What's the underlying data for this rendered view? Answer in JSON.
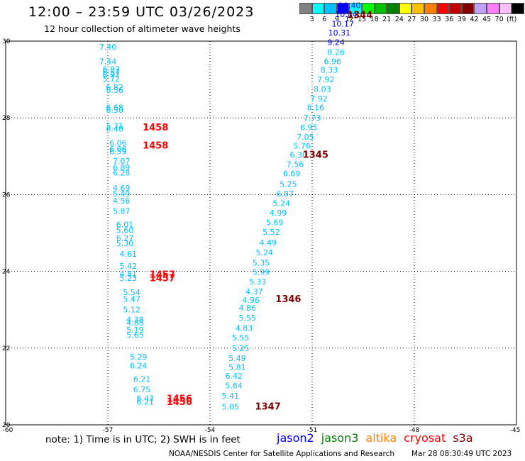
{
  "header": {
    "title": "12:00 – 23:59 UTC 03/26/2023",
    "subtitle": "12 hour collection of altimeter wave heights"
  },
  "legend": {
    "colors": [
      "#808080",
      "#00ffff",
      "#00c0ff",
      "#0000ff",
      "#00ffff",
      "#00ff00",
      "#00c000",
      "#008000",
      "#ffff00",
      "#ffc000",
      "#ff8000",
      "#ff0000",
      "#c00000",
      "#800000",
      "#c0a0ff",
      "#ff80ff",
      "#ffc0ff",
      "#000000"
    ],
    "labels": [
      "3",
      "6",
      "9",
      "12",
      "15",
      "18",
      "21",
      "24",
      "27",
      "30",
      "33",
      "36",
      "39",
      "42",
      "45",
      "70",
      "(ft)"
    ]
  },
  "chart_data": {
    "type": "scatter",
    "xlim": [
      -60,
      -45
    ],
    "ylim": [
      20,
      30
    ],
    "x_ticks": [
      "-60",
      "-57",
      "-54",
      "-51",
      "-48",
      "-45"
    ],
    "y_ticks": [
      "30",
      "28",
      "26",
      "24",
      "22",
      "20"
    ],
    "grid": true,
    "tracks": [
      {
        "color": "#00c0ff",
        "points": [
          [
            -57.0,
            29.78,
            "7.40"
          ],
          [
            -57.0,
            29.4,
            "7.44"
          ],
          [
            -56.9,
            29.2,
            "6.97"
          ],
          [
            -56.9,
            29.12,
            "6.57"
          ],
          [
            -56.9,
            29.05,
            "6.97"
          ],
          [
            -56.9,
            28.95,
            "5.72"
          ],
          [
            -56.8,
            28.72,
            "6.82"
          ],
          [
            -56.8,
            28.65,
            "6.56"
          ],
          [
            -56.8,
            28.2,
            "6.68"
          ],
          [
            -56.8,
            28.13,
            "6.50"
          ],
          [
            -56.8,
            27.72,
            "5.71"
          ],
          [
            -56.8,
            27.64,
            "6.40"
          ],
          [
            -56.7,
            27.27,
            "6.06"
          ],
          [
            -56.7,
            27.12,
            "6.06"
          ],
          [
            -56.7,
            27.05,
            "6.59"
          ],
          [
            -56.6,
            26.8,
            "7.07"
          ],
          [
            -56.6,
            26.64,
            "6.89"
          ],
          [
            -56.6,
            26.5,
            "6.28"
          ],
          [
            -56.6,
            26.1,
            "4.69"
          ],
          [
            -56.6,
            25.95,
            "5.49"
          ],
          [
            -56.6,
            25.77,
            "4.56"
          ],
          [
            -56.6,
            25.5,
            "5.87"
          ],
          [
            -56.5,
            25.15,
            "6.01"
          ],
          [
            -56.5,
            25.0,
            "5.60"
          ],
          [
            -56.5,
            24.8,
            "6.27"
          ],
          [
            -56.5,
            24.66,
            "5.30"
          ],
          [
            -56.4,
            24.38,
            "4.61"
          ],
          [
            -56.4,
            24.07,
            "5.42"
          ],
          [
            -56.4,
            23.86,
            "4.81"
          ],
          [
            -56.4,
            23.75,
            "5.23"
          ],
          [
            -56.3,
            23.38,
            "5.54"
          ],
          [
            -56.3,
            23.21,
            "5.47"
          ],
          [
            -56.3,
            22.93,
            "5.12"
          ],
          [
            -56.2,
            22.67,
            "4.38"
          ],
          [
            -56.2,
            22.59,
            "4.88"
          ],
          [
            -56.2,
            22.4,
            "5.19"
          ],
          [
            -56.2,
            22.27,
            "5.65"
          ],
          [
            -56.1,
            21.7,
            "5.29"
          ],
          [
            -56.1,
            21.47,
            "6.24"
          ],
          [
            -56.0,
            21.12,
            "6.21"
          ],
          [
            -56.0,
            20.85,
            "6.75"
          ],
          [
            -55.9,
            20.62,
            "6.43"
          ],
          [
            -55.9,
            20.53,
            "6.21"
          ]
        ]
      },
      {
        "color": "#00c0ff",
        "points": [
          [
            -53.4,
            20.4,
            "5.05"
          ],
          [
            -53.4,
            20.68,
            "5.41"
          ],
          [
            -53.3,
            20.95,
            "5.64"
          ],
          [
            -53.3,
            21.2,
            "6.42"
          ],
          [
            -53.2,
            21.43,
            "5.81"
          ],
          [
            -53.2,
            21.66,
            "5.49"
          ],
          [
            -53.1,
            21.92,
            "5.25"
          ],
          [
            -53.1,
            22.2,
            "5.55"
          ],
          [
            -53.0,
            22.45,
            "4.83"
          ],
          [
            -52.9,
            22.72,
            "5.55"
          ],
          [
            -52.9,
            22.98,
            "4.86"
          ],
          [
            -52.8,
            23.18,
            "4.96"
          ],
          [
            -52.7,
            23.4,
            "4.37"
          ],
          [
            -52.6,
            23.66,
            "5.33"
          ],
          [
            -52.5,
            23.91,
            "5.99"
          ],
          [
            -52.5,
            24.15,
            "5.35"
          ],
          [
            -52.4,
            24.42,
            "5.24"
          ],
          [
            -52.3,
            24.68,
            "4.49"
          ],
          [
            -52.2,
            24.95,
            "5.52"
          ],
          [
            -52.1,
            25.2,
            "5.69"
          ],
          [
            -52.0,
            25.45,
            "4.99"
          ],
          [
            -51.9,
            25.7,
            "5.24"
          ],
          [
            -51.8,
            25.95,
            "6.87"
          ],
          [
            -51.7,
            26.2,
            "5.25"
          ],
          [
            -51.6,
            26.48,
            "6.69"
          ],
          [
            -51.5,
            26.72,
            "7.56"
          ],
          [
            -51.4,
            26.97,
            "6.30"
          ],
          [
            -51.3,
            27.2,
            "5.76"
          ],
          [
            -51.2,
            27.43,
            "7.05"
          ],
          [
            -51.1,
            27.68,
            "6.95"
          ],
          [
            -51.0,
            27.93,
            "7.73"
          ],
          [
            -50.9,
            28.2,
            "8.16"
          ],
          [
            -50.8,
            28.43,
            "7.92"
          ],
          [
            -50.7,
            28.68,
            "8.03"
          ],
          [
            -50.6,
            28.93,
            "7.92"
          ],
          [
            -50.5,
            29.18,
            "8.33"
          ],
          [
            -50.4,
            29.4,
            "6.96"
          ],
          [
            -50.3,
            29.64,
            "8.26"
          ]
        ]
      },
      {
        "color": "#0000ff",
        "points": [
          [
            -50.3,
            29.9,
            "9.24"
          ],
          [
            -50.2,
            30.15,
            "10.31"
          ],
          [
            -50.1,
            30.38,
            "10.17"
          ],
          [
            -50.0,
            30.63,
            "10.84"
          ],
          [
            -49.9,
            30.86,
            "10.40"
          ]
        ]
      }
    ],
    "time_labels": [
      {
        "x": -49.6,
        "y": 30.6,
        "text": "1344",
        "color": "#800000"
      },
      {
        "x": -55.6,
        "y": 27.67,
        "text": "1458",
        "color": "#ff0000"
      },
      {
        "x": -55.6,
        "y": 27.2,
        "text": "1458",
        "color": "#ff0000"
      },
      {
        "x": -50.9,
        "y": 26.96,
        "text": "1345",
        "color": "#800000"
      },
      {
        "x": -55.4,
        "y": 23.84,
        "text": "1457",
        "color": "#ff0000"
      },
      {
        "x": -55.4,
        "y": 23.74,
        "text": "1457",
        "color": "#ff0000"
      },
      {
        "x": -51.7,
        "y": 23.2,
        "text": "1346",
        "color": "#800000"
      },
      {
        "x": -54.9,
        "y": 20.6,
        "text": "1456",
        "color": "#ff0000"
      },
      {
        "x": -54.9,
        "y": 20.52,
        "text": "1456",
        "color": "#ff0000"
      },
      {
        "x": -52.3,
        "y": 20.4,
        "text": "1347",
        "color": "#800000"
      }
    ]
  },
  "notes": {
    "text": "note:  1) Time is in UTC;  2) SWH is in feet"
  },
  "satellites": [
    {
      "name": "jason2",
      "color": "#0000ff"
    },
    {
      "name": "jason3",
      "color": "#008000"
    },
    {
      "name": "altika",
      "color": "#ff8000"
    },
    {
      "name": "cryosat",
      "color": "#ff0000"
    },
    {
      "name": "s3a",
      "color": "#800000"
    }
  ],
  "footer": {
    "credit": "NOAA/NESDIS Center for Satellite Applications and Research",
    "timestamp": "Mar 28 08:30:49 UTC 2023"
  }
}
